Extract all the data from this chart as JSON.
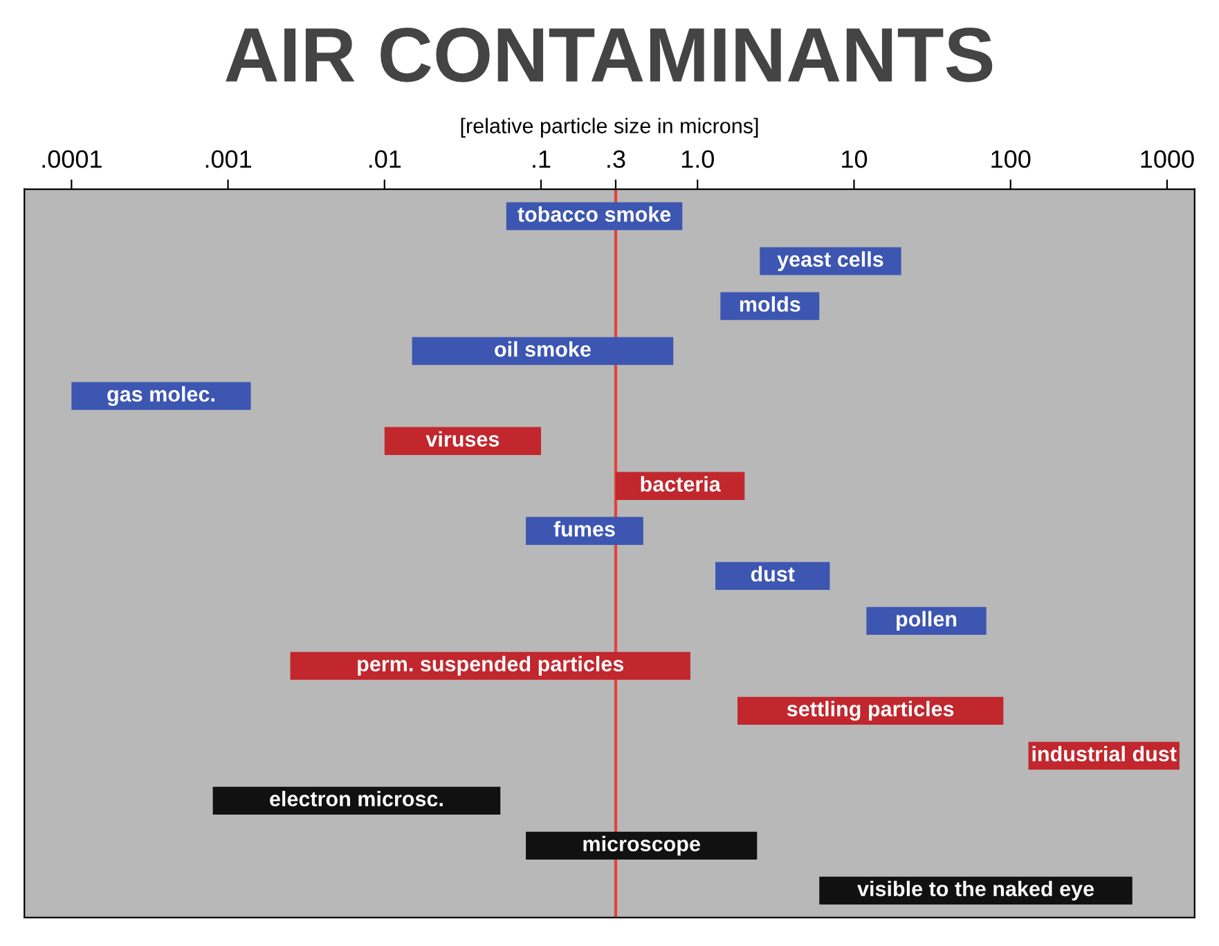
{
  "chart_data": {
    "type": "bar",
    "orientation": "horizontal",
    "log": "x",
    "title": "AIR CONTAMINANTS",
    "subtitle": "[relative particle size in microns]",
    "categories": [
      "tobacco smoke",
      "yeast cells",
      "molds",
      "oil smoke",
      "gas molec.",
      "viruses",
      "bacteria",
      "fumes",
      "dust",
      "pollen",
      "perm. suspended particles",
      "settling particles",
      "industrial dust",
      "electron microsc.",
      "microscope",
      "visible to the naked eye"
    ],
    "base": [
      0.06,
      2.5,
      1.4,
      0.015,
      0.0001,
      0.01,
      0.3,
      0.08,
      1.3,
      12,
      0.0025,
      1.8,
      130,
      0.0008,
      0.08,
      6
    ],
    "values": [
      0.74,
      17.5,
      4.6,
      0.685,
      0.0013,
      0.09,
      1.7,
      0.37,
      5.7,
      58,
      0.8975,
      88.2,
      1070,
      0.0542,
      2.32,
      594
    ],
    "colors": [
      "#3d56b2",
      "#3d56b2",
      "#3d56b2",
      "#3d56b2",
      "#3d56b2",
      "#c1272d",
      "#c1272d",
      "#3d56b2",
      "#3d56b2",
      "#3d56b2",
      "#c1272d",
      "#c1272d",
      "#c1272d",
      "#111111",
      "#111111",
      "#111111"
    ],
    "xlim": [
      5e-05,
      1500
    ],
    "xticks": [
      {
        "value": 0.0001,
        "label": ".0001"
      },
      {
        "value": 0.001,
        "label": ".001"
      },
      {
        "value": 0.01,
        "label": ".01"
      },
      {
        "value": 0.1,
        "label": ".1"
      },
      {
        "value": 0.3,
        "label": ".3"
      },
      {
        "value": 1,
        "label": "1.0"
      },
      10,
      100,
      1000
    ],
    "ref_lines": [
      {
        "axis": "x",
        "value": 0.3,
        "color": "#e8403a"
      }
    ],
    "tick_labels": "x",
    "grid": false
  }
}
